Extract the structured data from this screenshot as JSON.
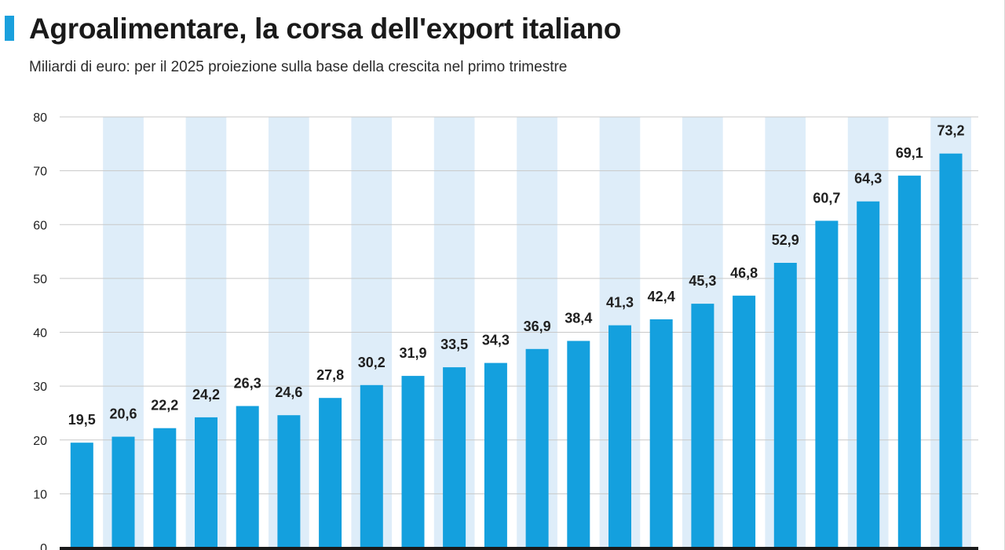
{
  "header": {
    "title": "Agroalimentare, la corsa dell'export italiano",
    "subtitle": "Miliardi di euro: per il 2025 proiezione sulla base della crescita nel primo trimestre"
  },
  "colors": {
    "accent": "#1aa0dd",
    "bar": "#14a0de",
    "band": "#deedf9",
    "grid": "#c8c8c8",
    "axis": "#1a1a1a"
  },
  "chart_data": {
    "type": "bar",
    "title": "Agroalimentare, la corsa dell'export italiano",
    "subtitle": "Miliardi di euro: per il 2025 proiezione sulla base della crescita nel primo trimestre",
    "xlabel": "",
    "ylabel": "",
    "ylim": [
      0,
      80
    ],
    "yticks": [
      0,
      10,
      20,
      30,
      40,
      50,
      60,
      70,
      80
    ],
    "grid": true,
    "legend": "none",
    "values": [
      19.5,
      20.6,
      22.2,
      24.2,
      26.3,
      24.6,
      27.8,
      30.2,
      31.9,
      33.5,
      34.3,
      36.9,
      38.4,
      41.3,
      42.4,
      45.3,
      46.8,
      52.9,
      60.7,
      64.3,
      69.1,
      73.2
    ],
    "value_labels": [
      "19,5",
      "20,6",
      "22,2",
      "24,2",
      "26,3",
      "24,6",
      "27,8",
      "30,2",
      "31,9",
      "33,5",
      "34,3",
      "36,9",
      "38,4",
      "41,3",
      "42,4",
      "45,3",
      "46,8",
      "52,9",
      "60,7",
      "64,3",
      "69,1",
      "73,2"
    ]
  }
}
